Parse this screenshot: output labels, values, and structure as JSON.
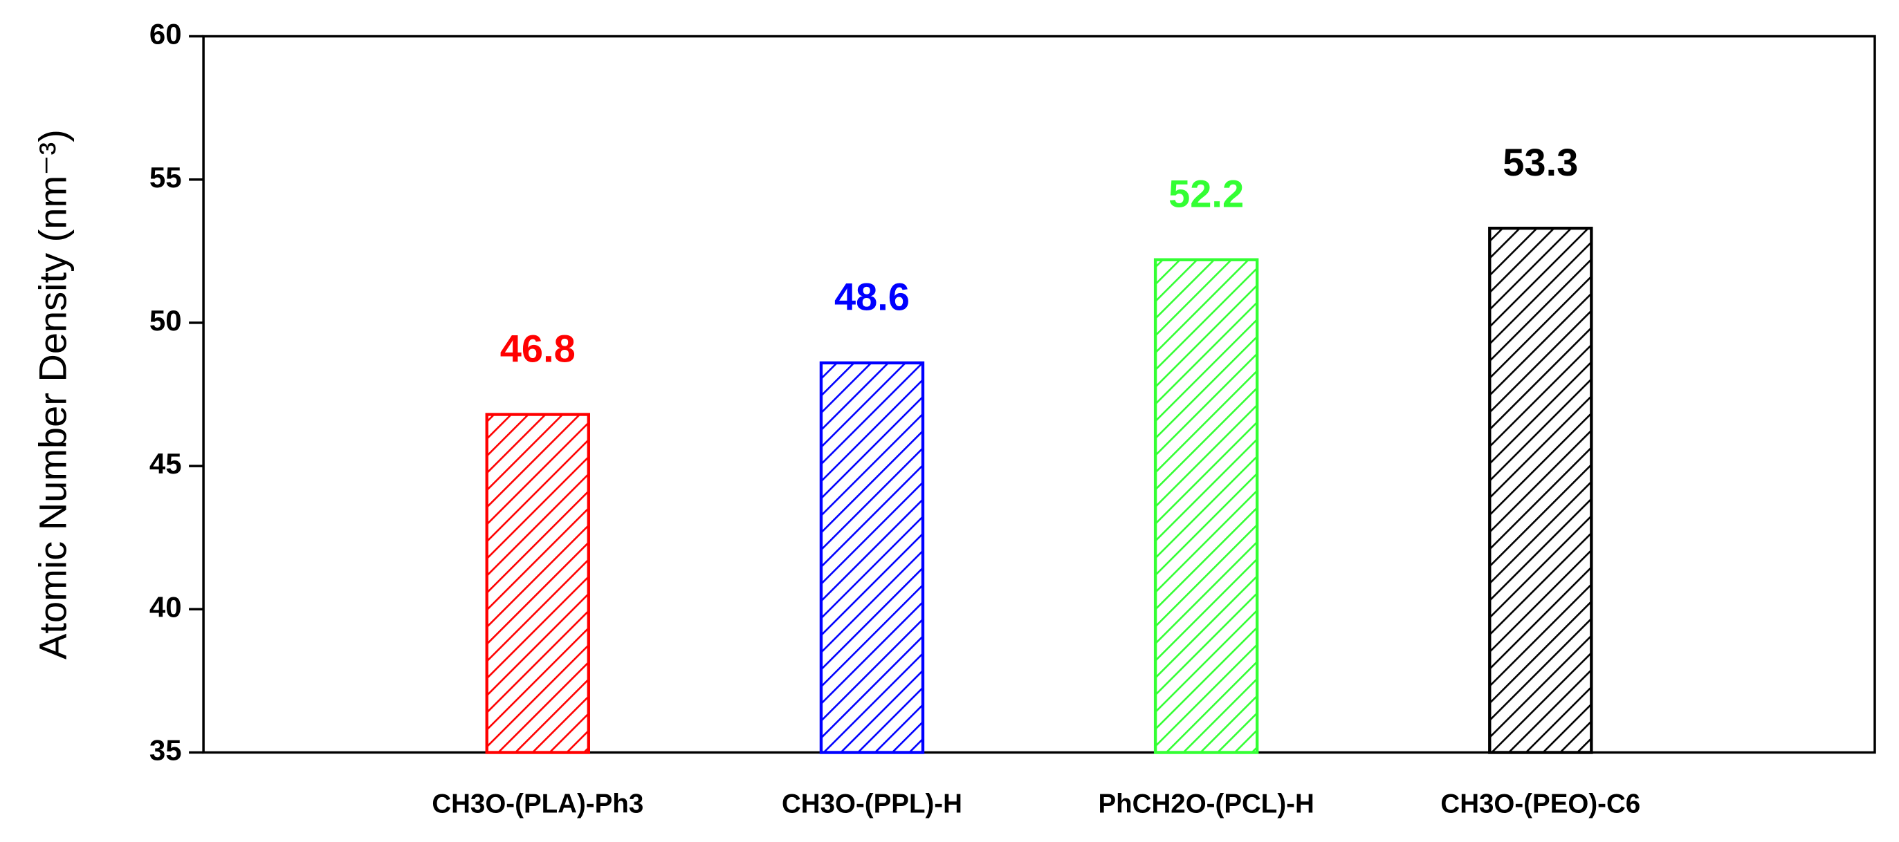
{
  "chart_data": {
    "type": "bar",
    "ylabel": "Atomic Number Density (nm⁻³)",
    "categories": [
      "CH3O-(PLA)-Ph3",
      "CH3O-(PPL)-H",
      "PhCH2O-(PCL)-H",
      "CH3O-(PEO)-C6"
    ],
    "values": [
      46.8,
      48.6,
      52.2,
      53.3
    ],
    "colors": [
      "#ff0000",
      "#0000ff",
      "#33ff33",
      "#000000"
    ],
    "ylim": [
      35,
      60
    ],
    "yticks": [
      35,
      40,
      45,
      50,
      55,
      60
    ],
    "hatch": true
  }
}
